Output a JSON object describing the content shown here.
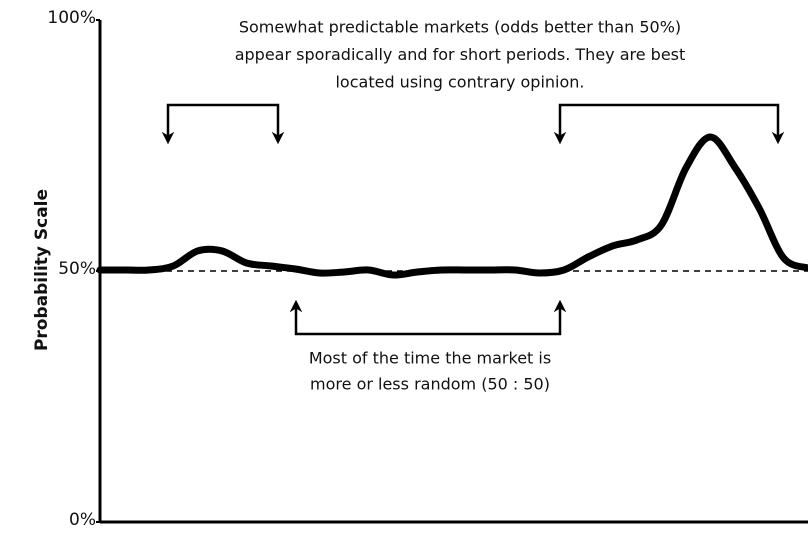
{
  "chart_data": {
    "type": "line",
    "y_label": "Probability Scale",
    "annotations": [
      {
        "lines": [
          "Somewhat predictable markets (odds better than 50%)",
          "appear sporadically and for short periods. They are best",
          "located using contrary opinion."
        ]
      },
      {
        "lines": [
          "Most of the time the market is",
          "more or less random (50 : 50)"
        ]
      }
    ],
    "categories": [
      null,
      null,
      null,
      null,
      null,
      null,
      null,
      null,
      null,
      null,
      null,
      null,
      null,
      null,
      null,
      null,
      null,
      null,
      null,
      null,
      null,
      null,
      null,
      null,
      null,
      null,
      null,
      null,
      null,
      null
    ],
    "series": [
      {
        "name": null,
        "color": "#000000",
        "values": [
          50.2,
          50.2,
          50.2,
          51,
          54,
          54,
          51.6,
          51,
          50.4,
          49.6,
          49.8,
          50.2,
          49.2,
          49.8,
          50.2,
          50.2,
          50.2,
          50.2,
          49.6,
          50.2,
          52.8,
          55,
          56.2,
          59.2,
          70.5,
          76.7,
          70.7,
          62.5,
          52.6,
          50.6
        ]
      }
    ],
    "ylim": [
      0,
      100
    ],
    "yticks": [
      {
        "value": 0,
        "label": "0%"
      },
      {
        "value": 50,
        "label": "50%"
      },
      {
        "value": 100,
        "label": "100%"
      }
    ],
    "reference_line": 50
  }
}
